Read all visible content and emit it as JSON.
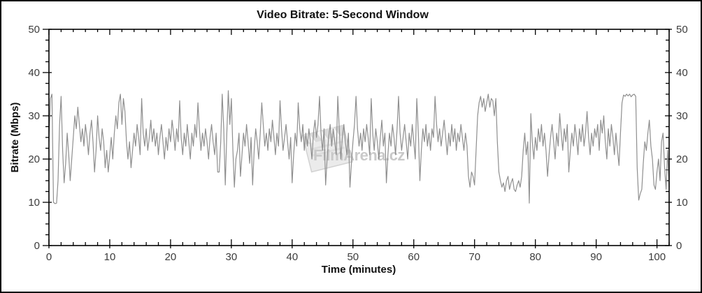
{
  "frame": {
    "background": "#ffffff",
    "border_color": "#000000",
    "axis_color": "#000000",
    "tick_label_color": "#3c3c3c"
  },
  "watermark": {
    "text": "FilmArena.cz",
    "color": "#c9c9c9",
    "icon": "clapperboard-icon"
  },
  "chart_data": {
    "type": "line",
    "title": "Video Bitrate: 5-Second Window",
    "xlabel": "Time (minutes)",
    "ylabel": "Bitrate (Mbps)",
    "xlim": [
      0,
      102
    ],
    "ylim": [
      0,
      50
    ],
    "x_major_tick": 10,
    "x_minor_tick": 2,
    "y_major_tick": 10,
    "y_minor_tick": 2.5,
    "x_tick_labels": [
      "0",
      "10",
      "20",
      "30",
      "40",
      "50",
      "60",
      "70",
      "80",
      "90",
      "100"
    ],
    "y_tick_labels": [
      "0",
      "10",
      "20",
      "30",
      "40",
      "50"
    ],
    "y_axis_mirrored": true,
    "grid": false,
    "legend": "none",
    "line_color": "#8f8f8f",
    "series": [
      {
        "name": "Video Bitrate (5-Second Window)",
        "unit": "Mbps",
        "x_start": 0,
        "x_step": 0.25,
        "values": [
          24,
          34,
          35,
          10,
          9.7,
          9.8,
          15,
          28,
          34.5,
          22,
          14.5,
          19,
          26,
          21,
          15,
          20,
          25,
          30,
          27,
          32,
          28,
          24,
          27,
          23,
          28,
          25,
          21,
          26,
          29,
          24,
          17,
          22,
          30,
          25,
          22,
          27,
          24,
          18,
          22,
          17,
          21,
          25,
          20,
          26,
          30,
          27,
          33,
          35,
          28,
          34,
          31,
          24,
          20,
          24,
          18,
          22,
          26,
          23,
          28,
          25,
          21,
          34,
          26,
          23,
          27,
          22,
          25,
          29,
          24,
          27,
          23,
          26,
          21,
          25,
          28,
          24,
          20,
          25,
          22,
          27,
          24,
          29,
          26,
          22,
          27,
          24,
          33.5,
          25,
          21,
          26,
          23,
          28,
          24,
          20,
          26,
          23,
          28,
          25,
          33,
          27,
          22,
          26,
          23,
          27,
          24,
          20,
          25,
          28,
          24,
          21,
          26,
          17,
          17,
          24,
          35,
          27,
          14,
          26,
          35.8,
          28,
          34,
          22,
          13.5,
          20,
          22,
          26,
          16,
          21,
          26,
          23,
          28,
          24,
          19,
          25,
          14,
          22,
          27,
          24,
          20,
          26,
          33,
          28,
          23,
          26,
          22,
          27,
          24,
          29,
          25,
          21,
          26,
          23,
          33.5,
          27,
          22,
          25,
          28,
          24,
          20,
          25,
          14.5,
          21,
          26,
          23,
          33,
          27,
          24,
          28,
          22,
          26,
          23,
          27,
          24,
          20,
          26,
          29,
          25,
          28,
          34.5,
          26,
          22,
          27,
          14,
          20,
          25,
          28,
          23,
          27,
          24,
          21,
          34.5,
          27,
          20,
          25,
          28,
          24,
          21,
          26,
          13.5,
          19,
          24,
          28,
          34.5,
          27,
          23,
          26,
          22,
          27,
          24,
          28,
          25,
          21,
          34,
          26,
          22,
          27,
          24,
          20,
          25,
          29,
          23,
          26,
          14.5,
          21,
          26,
          23,
          28,
          25,
          21,
          27,
          34.5,
          26,
          22,
          25,
          28,
          24,
          20,
          26,
          23,
          28,
          24,
          20,
          34,
          26,
          15,
          22,
          27,
          24,
          28,
          23,
          26,
          22,
          27,
          25,
          34.5,
          28,
          24,
          27,
          23,
          26,
          29,
          25,
          21,
          26,
          23,
          28,
          24,
          27,
          22,
          26,
          24,
          28,
          25,
          22,
          26,
          23,
          16,
          13.5,
          17,
          16,
          14,
          22,
          30,
          33,
          34.5,
          32,
          34,
          31,
          33,
          35,
          32,
          34,
          33.5,
          30,
          34,
          24,
          17,
          15,
          13.5,
          14.5,
          12.5,
          15,
          16,
          13,
          14.5,
          15.5,
          13,
          12.5,
          14,
          15,
          13.5,
          16,
          22,
          26,
          21,
          24,
          9.8,
          30.5,
          24,
          20,
          25,
          22,
          27,
          24,
          28,
          23,
          26,
          22,
          16,
          21,
          25,
          28,
          24,
          20,
          26,
          23,
          30.5,
          26,
          22,
          27,
          24,
          28,
          17,
          22,
          26,
          23,
          28,
          25,
          21,
          27,
          24,
          28,
          23,
          26,
          31,
          25,
          21,
          26,
          23,
          27,
          25,
          28,
          22,
          29,
          26,
          30,
          24,
          20,
          27,
          23,
          28,
          25,
          21,
          26,
          22,
          18.5,
          26,
          33,
          34.8,
          34.5,
          35,
          34.6,
          35,
          34.4,
          34.8,
          35,
          34.5,
          18,
          10.5,
          12,
          13,
          19,
          24,
          22,
          26,
          29,
          23,
          20,
          14,
          13,
          17,
          20,
          15,
          24,
          26,
          18,
          13,
          22,
          13.5
        ]
      }
    ]
  }
}
